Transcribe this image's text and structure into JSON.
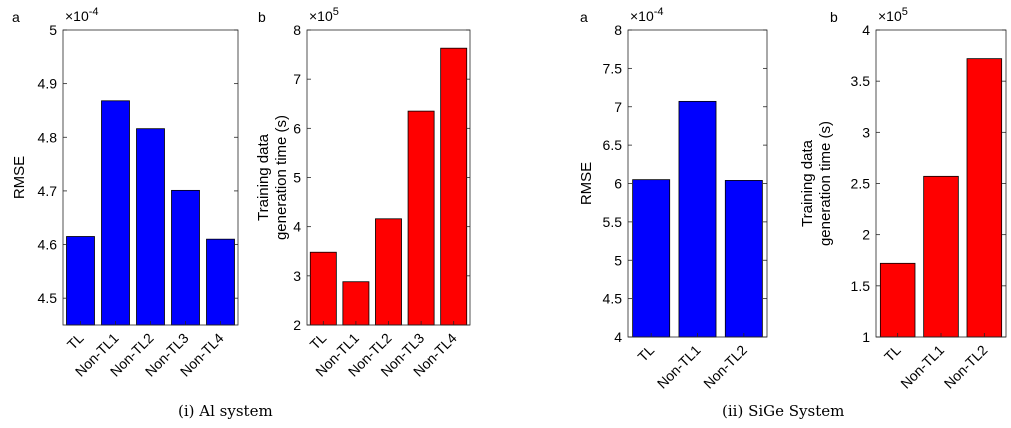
{
  "captions": {
    "left": "(i)  Al system",
    "right": "(ii)  SiGe System"
  },
  "chart_data": [
    {
      "type": "bar",
      "panel_label": "a",
      "exponent_label": "×10",
      "exponent_power": "-4",
      "ylabel": "RMSE",
      "categories": [
        "TL",
        "Non-TL1",
        "Non-TL2",
        "Non-TL3",
        "Non-TL4"
      ],
      "values": [
        4.615,
        4.868,
        4.816,
        4.701,
        4.61
      ],
      "ylim": [
        4.45,
        5
      ],
      "yticks": [
        4.5,
        4.6,
        4.7,
        4.8,
        4.9,
        5
      ],
      "ytick_labels": [
        "4.5",
        "4.6",
        "4.7",
        "4.8",
        "4.9",
        "5"
      ],
      "color": "#0000ff",
      "grid": false
    },
    {
      "type": "bar",
      "panel_label": "b",
      "exponent_label": "×10",
      "exponent_power": "5",
      "ylabel_lines": [
        "Training data",
        "generation time (s)"
      ],
      "categories": [
        "TL",
        "Non-TL1",
        "Non-TL2",
        "Non-TL3",
        "Non-TL4"
      ],
      "values": [
        3.48,
        2.88,
        4.16,
        6.35,
        7.63
      ],
      "ylim": [
        2,
        8
      ],
      "yticks": [
        2,
        3,
        4,
        5,
        6,
        7,
        8
      ],
      "ytick_labels": [
        "2",
        "3",
        "4",
        "5",
        "6",
        "7",
        "8"
      ],
      "color": "#ff0000",
      "grid": false
    },
    {
      "type": "bar",
      "panel_label": "a",
      "exponent_label": "×10",
      "exponent_power": "-4",
      "ylabel": "RMSE",
      "categories": [
        "TL",
        "Non-TL1",
        "Non-TL2"
      ],
      "values": [
        6.05,
        7.07,
        6.04
      ],
      "ylim": [
        4,
        8
      ],
      "yticks": [
        4,
        4.5,
        5,
        5.5,
        6,
        6.5,
        7,
        7.5,
        8
      ],
      "ytick_labels": [
        "4",
        "4.5",
        "5",
        "5.5",
        "6",
        "6.5",
        "7",
        "7.5",
        "8"
      ],
      "color": "#0000ff",
      "grid": false
    },
    {
      "type": "bar",
      "panel_label": "b",
      "exponent_label": "×10",
      "exponent_power": "5",
      "ylabel_lines": [
        "Training data",
        "generation time (s)"
      ],
      "categories": [
        "TL",
        "Non-TL1",
        "Non-TL2"
      ],
      "values": [
        1.72,
        2.57,
        3.72
      ],
      "ylim": [
        1,
        4
      ],
      "yticks": [
        1,
        1.5,
        2,
        2.5,
        3,
        3.5,
        4
      ],
      "ytick_labels": [
        "1",
        "1.5",
        "2",
        "2.5",
        "3",
        "3.5",
        "4"
      ],
      "color": "#ff0000",
      "grid": false
    }
  ]
}
